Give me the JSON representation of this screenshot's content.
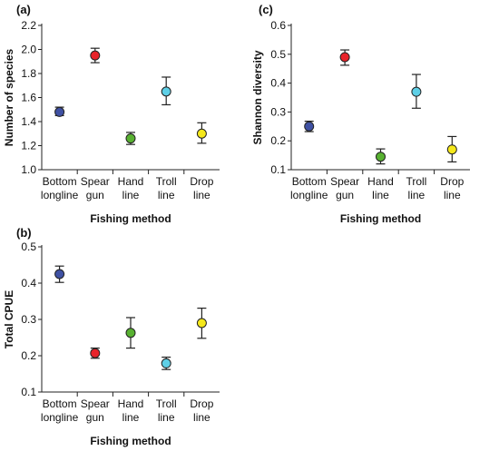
{
  "chart_data": [
    {
      "id": "a",
      "panel_label": "(a)",
      "type": "scatter",
      "categories": [
        "Bottom longline",
        "Spear gun",
        "Hand line",
        "Troll line",
        "Drop line"
      ],
      "category_labels": [
        [
          "Bottom",
          "longline"
        ],
        [
          "Spear",
          "gun"
        ],
        [
          "Hand",
          "line"
        ],
        [
          "Troll",
          "line"
        ],
        [
          "Drop",
          "line"
        ]
      ],
      "values": [
        1.48,
        1.95,
        1.26,
        1.65,
        1.3
      ],
      "err_low": [
        1.45,
        1.89,
        1.21,
        1.54,
        1.22
      ],
      "err_high": [
        1.52,
        2.01,
        1.31,
        1.77,
        1.39
      ],
      "xlabel": "Fishing method",
      "ylabel": "Number of species",
      "ylim": [
        1.0,
        2.2
      ],
      "yticks": [
        1.0,
        1.2,
        1.4,
        1.6,
        1.8,
        2.0,
        2.2
      ],
      "ytick_labels": [
        "1.0",
        "1.2",
        "1.4",
        "1.6",
        "1.8",
        "2.0",
        "2.2"
      ],
      "colors": [
        "#3f51a3",
        "#e8232a",
        "#58b131",
        "#5ecfe6",
        "#f5e81b"
      ],
      "grid": false
    },
    {
      "id": "c",
      "panel_label": "(c)",
      "type": "scatter",
      "categories": [
        "Bottom longline",
        "Spear gun",
        "Hand line",
        "Troll line",
        "Drop line"
      ],
      "category_labels": [
        [
          "Bottom",
          "longline"
        ],
        [
          "Spear",
          "gun"
        ],
        [
          "Hand",
          "line"
        ],
        [
          "Troll",
          "line"
        ],
        [
          "Drop",
          "line"
        ]
      ],
      "values": [
        0.25,
        0.49,
        0.145,
        0.37,
        0.17
      ],
      "err_low": [
        0.232,
        0.462,
        0.12,
        0.313,
        0.127
      ],
      "err_high": [
        0.268,
        0.515,
        0.172,
        0.43,
        0.215
      ],
      "xlabel": "Fishing method",
      "ylabel": "Shannon diversity",
      "ylim": [
        0.1,
        0.6
      ],
      "yticks": [
        0.1,
        0.2,
        0.3,
        0.4,
        0.5,
        0.6
      ],
      "ytick_labels": [
        "0.1",
        "0.2",
        "0.3",
        "0.4",
        "0.5",
        "0.6"
      ],
      "colors": [
        "#3f51a3",
        "#e8232a",
        "#58b131",
        "#5ecfe6",
        "#f5e81b"
      ],
      "grid": false
    },
    {
      "id": "b",
      "panel_label": "(b)",
      "type": "scatter",
      "categories": [
        "Bottom longline",
        "Spear gun",
        "Hand line",
        "Troll line",
        "Drop line"
      ],
      "category_labels": [
        [
          "Bottom",
          "longline"
        ],
        [
          "Spear",
          "gun"
        ],
        [
          "Hand",
          "line"
        ],
        [
          "Troll",
          "line"
        ],
        [
          "Drop",
          "line"
        ]
      ],
      "values": [
        0.425,
        0.207,
        0.263,
        0.179,
        0.29
      ],
      "err_low": [
        0.402,
        0.193,
        0.221,
        0.162,
        0.248
      ],
      "err_high": [
        0.447,
        0.221,
        0.305,
        0.196,
        0.331
      ],
      "xlabel": "Fishing method",
      "ylabel": "Total CPUE",
      "ylim": [
        0.1,
        0.5
      ],
      "yticks": [
        0.1,
        0.2,
        0.3,
        0.4,
        0.5
      ],
      "ytick_labels": [
        "0.1",
        "0.2",
        "0.3",
        "0.4",
        "0.5"
      ],
      "colors": [
        "#3f51a3",
        "#e8232a",
        "#58b131",
        "#5ecfe6",
        "#f5e81b"
      ],
      "grid": false
    }
  ]
}
